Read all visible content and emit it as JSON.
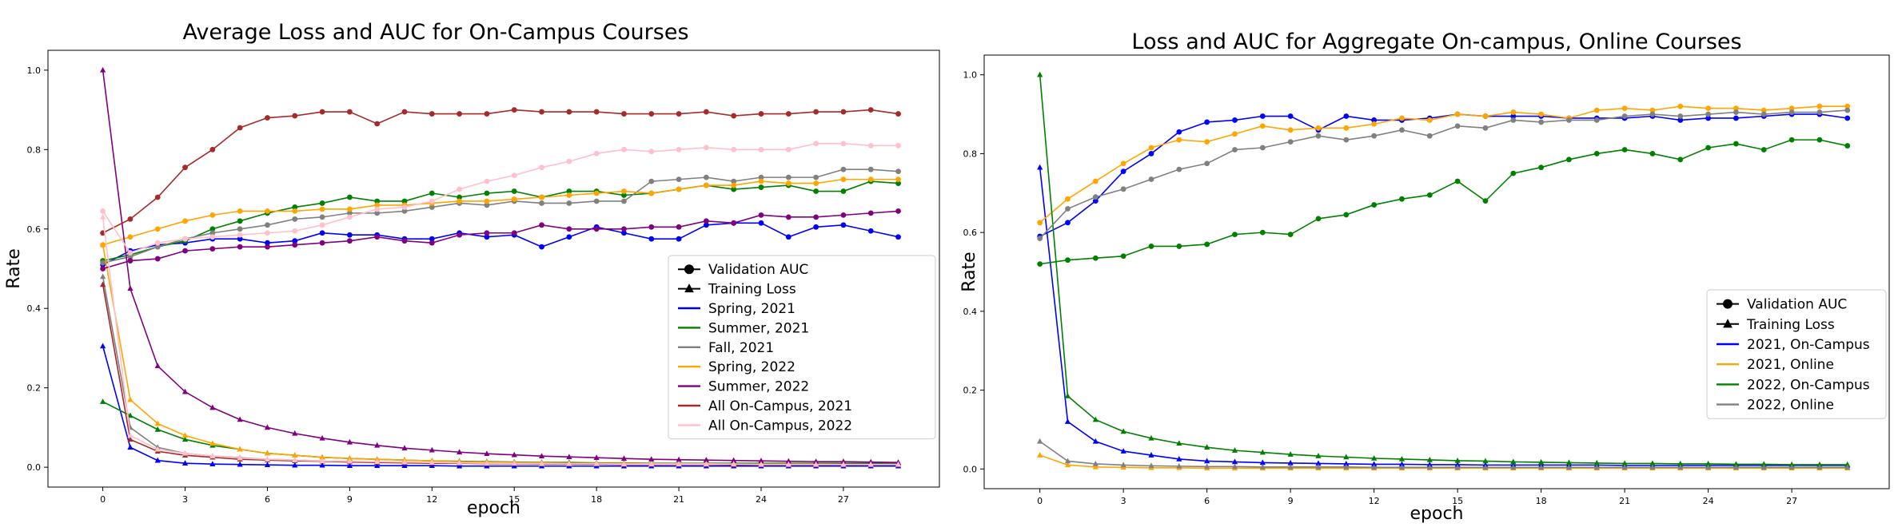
{
  "chart_data": [
    {
      "type": "line",
      "title": "Average Loss and AUC for On-Campus Courses",
      "xlabel": "epoch",
      "ylabel": "Rate",
      "xlim": [
        -2,
        30.5
      ],
      "ylim": [
        -0.05,
        1.05
      ],
      "xticks": [
        0,
        3,
        6,
        9,
        12,
        15,
        18,
        21,
        24,
        27
      ],
      "yticks": [
        0.0,
        0.2,
        0.4,
        0.6,
        0.8,
        1.0
      ],
      "grid": false,
      "legend_position": "lower-right",
      "legend": [
        {
          "label": "Validation AUC",
          "kind": "marker-circle",
          "color": "#000000"
        },
        {
          "label": "Training Loss",
          "kind": "marker-triangle",
          "color": "#000000"
        },
        {
          "label": "Spring, 2021",
          "kind": "line",
          "color": "#0000ff"
        },
        {
          "label": "Summer, 2021",
          "kind": "line",
          "color": "#008000"
        },
        {
          "label": "Fall, 2021",
          "kind": "line",
          "color": "#808080"
        },
        {
          "label": "Spring, 2022",
          "kind": "line",
          "color": "#ffa500"
        },
        {
          "label": "Summer, 2022",
          "kind": "line",
          "color": "#800080"
        },
        {
          "label": "All On-Campus, 2021",
          "kind": "line",
          "color": "#a52a2a"
        },
        {
          "label": "All On-Campus, 2022",
          "kind": "line",
          "color": "#ffc0cb"
        }
      ],
      "series": [
        {
          "name": "Spring, 2021",
          "metric": "Validation AUC",
          "color": "#0000ff",
          "marker": "circle",
          "values": [
            0.51,
            0.545,
            0.56,
            0.565,
            0.575,
            0.575,
            0.565,
            0.57,
            0.59,
            0.585,
            0.585,
            0.575,
            0.575,
            0.59,
            0.58,
            0.585,
            0.555,
            0.58,
            0.605,
            0.59,
            0.575,
            0.575,
            0.61,
            0.615,
            0.615,
            0.58,
            0.605,
            0.61,
            0.595,
            0.58
          ]
        },
        {
          "name": "Spring, 2021",
          "metric": "Training Loss",
          "color": "#0000ff",
          "marker": "triangle",
          "values": [
            0.305,
            0.05,
            0.017,
            0.01,
            0.008,
            0.007,
            0.006,
            0.005,
            0.005,
            0.004,
            0.004,
            0.004,
            0.004,
            0.003,
            0.003,
            0.003,
            0.003,
            0.003,
            0.003,
            0.003,
            0.003,
            0.003,
            0.003,
            0.003,
            0.003,
            0.003,
            0.003,
            0.003,
            0.003,
            0.003
          ]
        },
        {
          "name": "Summer, 2021",
          "metric": "Validation AUC",
          "color": "#008000",
          "marker": "circle",
          "values": [
            0.52,
            0.535,
            0.555,
            0.57,
            0.6,
            0.62,
            0.64,
            0.655,
            0.665,
            0.68,
            0.67,
            0.67,
            0.69,
            0.68,
            0.69,
            0.695,
            0.68,
            0.695,
            0.695,
            0.685,
            0.69,
            0.7,
            0.71,
            0.7,
            0.705,
            0.71,
            0.695,
            0.695,
            0.72,
            0.715
          ]
        },
        {
          "name": "Summer, 2021",
          "metric": "Training Loss",
          "color": "#008000",
          "marker": "triangle",
          "values": [
            0.165,
            0.13,
            0.095,
            0.07,
            0.055,
            0.045,
            0.035,
            0.03,
            0.025,
            0.022,
            0.02,
            0.018,
            0.016,
            0.015,
            0.014,
            0.013,
            0.012,
            0.012,
            0.011,
            0.011,
            0.01,
            0.01,
            0.01,
            0.01,
            0.01,
            0.01,
            0.01,
            0.01,
            0.01,
            0.01
          ]
        },
        {
          "name": "Fall, 2021",
          "metric": "Validation AUC",
          "color": "#808080",
          "marker": "circle",
          "values": [
            0.515,
            0.53,
            0.555,
            0.575,
            0.59,
            0.6,
            0.61,
            0.625,
            0.63,
            0.64,
            0.64,
            0.645,
            0.655,
            0.665,
            0.66,
            0.67,
            0.665,
            0.665,
            0.67,
            0.67,
            0.72,
            0.725,
            0.73,
            0.72,
            0.73,
            0.73,
            0.73,
            0.75,
            0.75,
            0.745
          ]
        },
        {
          "name": "Fall, 2021",
          "metric": "Training Loss",
          "color": "#808080",
          "marker": "triangle",
          "values": [
            0.48,
            0.1,
            0.05,
            0.035,
            0.028,
            0.024,
            0.02,
            0.018,
            0.016,
            0.015,
            0.013,
            0.012,
            0.011,
            0.01,
            0.01,
            0.009,
            0.009,
            0.008,
            0.008,
            0.008,
            0.007,
            0.007,
            0.007,
            0.007,
            0.007,
            0.006,
            0.006,
            0.006,
            0.006,
            0.006
          ]
        },
        {
          "name": "Spring, 2022",
          "metric": "Validation AUC",
          "color": "#ffa500",
          "marker": "circle",
          "values": [
            0.56,
            0.58,
            0.6,
            0.62,
            0.635,
            0.645,
            0.645,
            0.645,
            0.65,
            0.65,
            0.66,
            0.66,
            0.665,
            0.67,
            0.67,
            0.675,
            0.68,
            0.685,
            0.69,
            0.695,
            0.69,
            0.7,
            0.71,
            0.71,
            0.72,
            0.715,
            0.715,
            0.725,
            0.725,
            0.725
          ]
        },
        {
          "name": "Spring, 2022",
          "metric": "Training Loss",
          "color": "#ffa500",
          "marker": "triangle",
          "values": [
            0.56,
            0.17,
            0.11,
            0.08,
            0.06,
            0.045,
            0.035,
            0.03,
            0.025,
            0.022,
            0.02,
            0.018,
            0.016,
            0.014,
            0.013,
            0.012,
            0.011,
            0.01,
            0.01,
            0.01,
            0.009,
            0.009,
            0.009,
            0.008,
            0.008,
            0.008,
            0.008,
            0.007,
            0.007,
            0.007
          ]
        },
        {
          "name": "Summer, 2022",
          "metric": "Validation AUC",
          "color": "#800080",
          "marker": "circle",
          "values": [
            0.5,
            0.52,
            0.525,
            0.545,
            0.55,
            0.555,
            0.555,
            0.56,
            0.565,
            0.57,
            0.58,
            0.57,
            0.565,
            0.585,
            0.59,
            0.59,
            0.61,
            0.6,
            0.6,
            0.6,
            0.605,
            0.605,
            0.62,
            0.615,
            0.635,
            0.63,
            0.63,
            0.635,
            0.64,
            0.645
          ]
        },
        {
          "name": "Summer, 2022",
          "metric": "Training Loss",
          "color": "#800080",
          "marker": "triangle",
          "values": [
            1.0,
            0.45,
            0.255,
            0.19,
            0.15,
            0.12,
            0.1,
            0.085,
            0.073,
            0.063,
            0.055,
            0.048,
            0.043,
            0.038,
            0.034,
            0.031,
            0.028,
            0.026,
            0.024,
            0.022,
            0.02,
            0.019,
            0.018,
            0.017,
            0.016,
            0.015,
            0.014,
            0.014,
            0.013,
            0.012
          ]
        },
        {
          "name": "All On-Campus, 2021",
          "metric": "Validation AUC",
          "color": "#a52a2a",
          "marker": "circle",
          "values": [
            0.59,
            0.625,
            0.68,
            0.755,
            0.8,
            0.855,
            0.88,
            0.885,
            0.895,
            0.895,
            0.865,
            0.895,
            0.89,
            0.89,
            0.89,
            0.9,
            0.895,
            0.895,
            0.895,
            0.89,
            0.89,
            0.89,
            0.895,
            0.885,
            0.89,
            0.89,
            0.895,
            0.895,
            0.9,
            0.89
          ]
        },
        {
          "name": "All On-Campus, 2021",
          "metric": "Training Loss",
          "color": "#a52a2a",
          "marker": "triangle",
          "values": [
            0.46,
            0.07,
            0.04,
            0.03,
            0.025,
            0.02,
            0.018,
            0.016,
            0.015,
            0.013,
            0.012,
            0.011,
            0.01,
            0.01,
            0.009,
            0.009,
            0.008,
            0.008,
            0.008,
            0.007,
            0.007,
            0.007,
            0.007,
            0.006,
            0.006,
            0.006,
            0.006,
            0.006,
            0.006,
            0.006
          ]
        },
        {
          "name": "All On-Campus, 2022",
          "metric": "Validation AUC",
          "color": "#ffc0cb",
          "marker": "circle",
          "values": [
            0.645,
            0.54,
            0.565,
            0.575,
            0.58,
            0.585,
            0.59,
            0.595,
            0.61,
            0.63,
            0.65,
            0.655,
            0.67,
            0.7,
            0.72,
            0.735,
            0.755,
            0.77,
            0.79,
            0.8,
            0.795,
            0.8,
            0.805,
            0.8,
            0.8,
            0.8,
            0.815,
            0.815,
            0.81,
            0.81
          ]
        },
        {
          "name": "All On-Campus, 2022",
          "metric": "Training Loss",
          "color": "#ffc0cb",
          "marker": "triangle",
          "values": [
            0.63,
            0.08,
            0.045,
            0.035,
            0.028,
            0.023,
            0.02,
            0.018,
            0.016,
            0.015,
            0.014,
            0.013,
            0.012,
            0.011,
            0.01,
            0.01,
            0.009,
            0.009,
            0.009,
            0.008,
            0.008,
            0.008,
            0.008,
            0.008,
            0.007,
            0.007,
            0.007,
            0.007,
            0.007,
            0.007
          ]
        }
      ]
    },
    {
      "type": "line",
      "title": "Loss and AUC for Aggregate On-campus, Online Courses",
      "xlabel": "epoch",
      "ylabel": "Rate",
      "xlim": [
        -2,
        30.5
      ],
      "ylim": [
        -0.05,
        1.05
      ],
      "xticks": [
        0,
        3,
        6,
        9,
        12,
        15,
        18,
        21,
        24,
        27
      ],
      "yticks": [
        0.0,
        0.2,
        0.4,
        0.6,
        0.8,
        1.0
      ],
      "grid": false,
      "legend_position": "lower-right",
      "legend": [
        {
          "label": "Validation AUC",
          "kind": "marker-circle",
          "color": "#000000"
        },
        {
          "label": "Training Loss",
          "kind": "marker-triangle",
          "color": "#000000"
        },
        {
          "label": "2021, On-Campus",
          "kind": "line",
          "color": "#0000ff"
        },
        {
          "label": "2021, Online",
          "kind": "line",
          "color": "#ffa500"
        },
        {
          "label": "2022, On-Campus",
          "kind": "line",
          "color": "#008000"
        },
        {
          "label": "2022, Online",
          "kind": "line",
          "color": "#808080"
        }
      ],
      "series": [
        {
          "name": "2021, On-Campus",
          "metric": "Validation AUC",
          "color": "#0000ff",
          "marker": "circle",
          "values": [
            0.59,
            0.625,
            0.68,
            0.755,
            0.8,
            0.855,
            0.88,
            0.885,
            0.895,
            0.895,
            0.86,
            0.895,
            0.885,
            0.885,
            0.89,
            0.9,
            0.895,
            0.895,
            0.895,
            0.89,
            0.89,
            0.89,
            0.895,
            0.885,
            0.89,
            0.89,
            0.895,
            0.9,
            0.9,
            0.89
          ]
        },
        {
          "name": "2021, On-Campus",
          "metric": "Training Loss",
          "color": "#0000ff",
          "marker": "triangle",
          "values": [
            0.765,
            0.12,
            0.07,
            0.045,
            0.035,
            0.025,
            0.02,
            0.018,
            0.016,
            0.015,
            0.014,
            0.013,
            0.012,
            0.012,
            0.011,
            0.011,
            0.01,
            0.01,
            0.01,
            0.01,
            0.01,
            0.009,
            0.009,
            0.009,
            0.009,
            0.009,
            0.009,
            0.009,
            0.009,
            0.009
          ]
        },
        {
          "name": "2021, Online",
          "metric": "Validation AUC",
          "color": "#ffa500",
          "marker": "circle",
          "values": [
            0.625,
            0.685,
            0.73,
            0.775,
            0.815,
            0.835,
            0.83,
            0.85,
            0.87,
            0.86,
            0.865,
            0.865,
            0.875,
            0.89,
            0.885,
            0.9,
            0.895,
            0.905,
            0.9,
            0.89,
            0.91,
            0.915,
            0.91,
            0.92,
            0.915,
            0.915,
            0.91,
            0.915,
            0.92,
            0.92
          ]
        },
        {
          "name": "2021, Online",
          "metric": "Training Loss",
          "color": "#ffa500",
          "marker": "triangle",
          "values": [
            0.035,
            0.01,
            0.005,
            0.004,
            0.003,
            0.003,
            0.002,
            0.002,
            0.002,
            0.002,
            0.002,
            0.002,
            0.002,
            0.002,
            0.002,
            0.002,
            0.002,
            0.002,
            0.002,
            0.002,
            0.002,
            0.002,
            0.002,
            0.002,
            0.002,
            0.002,
            0.002,
            0.002,
            0.002,
            0.002
          ]
        },
        {
          "name": "2022, On-Campus",
          "metric": "Validation AUC",
          "color": "#008000",
          "marker": "circle",
          "values": [
            0.52,
            0.53,
            0.535,
            0.54,
            0.565,
            0.565,
            0.57,
            0.595,
            0.6,
            0.595,
            0.635,
            0.645,
            0.67,
            0.685,
            0.695,
            0.73,
            0.68,
            0.75,
            0.765,
            0.785,
            0.8,
            0.81,
            0.8,
            0.785,
            0.815,
            0.825,
            0.81,
            0.835,
            0.835,
            0.82
          ]
        },
        {
          "name": "2022, On-Campus",
          "metric": "Training Loss",
          "color": "#008000",
          "marker": "triangle",
          "values": [
            1.0,
            0.185,
            0.125,
            0.095,
            0.078,
            0.065,
            0.055,
            0.047,
            0.042,
            0.037,
            0.033,
            0.03,
            0.027,
            0.025,
            0.023,
            0.021,
            0.02,
            0.018,
            0.017,
            0.016,
            0.015,
            0.014,
            0.014,
            0.013,
            0.013,
            0.012,
            0.012,
            0.011,
            0.011,
            0.011
          ]
        },
        {
          "name": "2022, Online",
          "metric": "Validation AUC",
          "color": "#808080",
          "marker": "circle",
          "values": [
            0.585,
            0.66,
            0.69,
            0.71,
            0.735,
            0.76,
            0.775,
            0.81,
            0.815,
            0.83,
            0.845,
            0.835,
            0.845,
            0.86,
            0.845,
            0.87,
            0.865,
            0.885,
            0.88,
            0.885,
            0.885,
            0.895,
            0.9,
            0.895,
            0.9,
            0.905,
            0.9,
            0.905,
            0.905,
            0.91
          ]
        },
        {
          "name": "2022, Online",
          "metric": "Training Loss",
          "color": "#808080",
          "marker": "triangle",
          "values": [
            0.07,
            0.02,
            0.013,
            0.01,
            0.008,
            0.007,
            0.006,
            0.006,
            0.005,
            0.005,
            0.005,
            0.005,
            0.004,
            0.004,
            0.004,
            0.004,
            0.004,
            0.004,
            0.004,
            0.004,
            0.004,
            0.004,
            0.004,
            0.004,
            0.004,
            0.004,
            0.004,
            0.004,
            0.004,
            0.004
          ]
        }
      ]
    }
  ]
}
